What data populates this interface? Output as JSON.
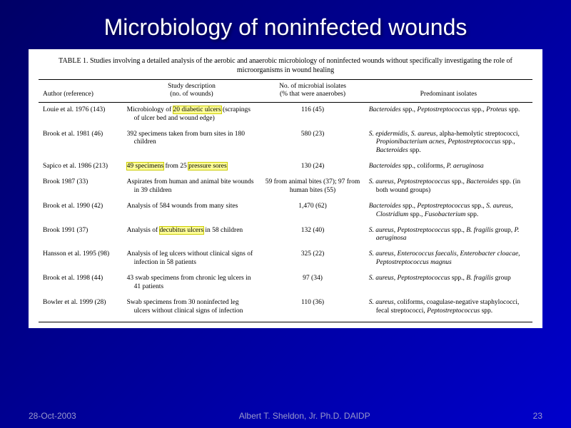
{
  "slide": {
    "title": "Microbiology of noninfected wounds",
    "background_gradient": [
      "#000066",
      "#000099",
      "#0000cc"
    ],
    "title_color": "#ffffff",
    "title_fontsize": 32
  },
  "table": {
    "type": "table",
    "background_color": "#ffffff",
    "font_family": "Times New Roman",
    "caption": "TABLE 1. Studies involving a detailed analysis of the aerobic and anaerobic microbiology of noninfected wounds without specifically investigating the role of microorganisms in wound healing",
    "caption_fontsize": 10,
    "body_fontsize": 9.5,
    "rule_color": "#000000",
    "highlight_bg": "#ffff99",
    "highlight_border": "#cccc00",
    "columns": [
      {
        "key": "author",
        "label": "Author (reference)",
        "width_pct": 17,
        "align": "left"
      },
      {
        "key": "desc",
        "label": "Study description\n(no. of wounds)",
        "width_pct": 28,
        "align": "left"
      },
      {
        "key": "isolates",
        "label": "No. of microbial isolates\n(% that were anaerobes)",
        "width_pct": 21,
        "align": "center"
      },
      {
        "key": "predominant",
        "label": "Predominant isolates",
        "width_pct": 34,
        "align": "left"
      }
    ],
    "header": {
      "author": "Author (reference)",
      "desc_l1": "Study description",
      "desc_l2": "(no. of wounds)",
      "isolates_l1": "No. of microbial isolates",
      "isolates_l2": "(% that were anaerobes)",
      "predominant": "Predominant isolates"
    },
    "rows": [
      {
        "author": "Louie et al. 1976 (143)",
        "desc_pre": "Microbiology of ",
        "desc_hilite": "20 diabetic ulcers",
        "desc_post": " (scrapings of ulcer bed and wound edge)",
        "isolates": "116 (45)",
        "predominant_html": "<span class='italic'>Bacteroides</span> spp., <span class='italic'>Peptostreptococcus</span> spp., <span class='italic'>Proteus</span> spp."
      },
      {
        "author": "Brook et al. 1981 (46)",
        "desc_plain": "392 specimens taken from burn sites in 180 children",
        "isolates": "580 (23)",
        "predominant_html": "<span class='italic'>S. epidermidis</span>, <span class='italic'>S. aureus</span>, alpha-hemolytic streptococci, <span class='italic'>Propionibacterium acnes</span>, <span class='italic'>Peptostreptococcus</span> spp., <span class='italic'>Bacteroides</span> spp."
      },
      {
        "author": "Sapico et al. 1986 (213)",
        "desc_pre": "",
        "desc_hilite": "49 specimens",
        "desc_mid": " from 25 ",
        "desc_hilite2": "pressure sores",
        "desc_post": "",
        "isolates": "130 (24)",
        "predominant_html": "<span class='italic'>Bacteroides</span> spp., coliforms, <span class='italic'>P. aeruginosa</span>"
      },
      {
        "author": "Brook 1987 (33)",
        "desc_plain": "Aspirates from human and animal bite wounds in 39 children",
        "isolates": "59 from animal bites (37); 97 from human bites (55)",
        "predominant_html": "<span class='italic'>S. aureus</span>, <span class='italic'>Peptostreptococcus</span> spp., <span class='italic'>Bacteroides</span> spp. (in both wound groups)"
      },
      {
        "author": "Brook et al. 1990 (42)",
        "desc_plain": "Analysis of 584 wounds from many sites",
        "isolates": "1,470 (62)",
        "predominant_html": "<span class='italic'>Bacteroides</span> spp., <span class='italic'>Peptostreptococcus</span> spp., <span class='italic'>S. aureus</span>, <span class='italic'>Clostridium</span> spp., <span class='italic'>Fusobacterium</span> spp."
      },
      {
        "author": "Brook 1991 (37)",
        "desc_pre": "Analysis of ",
        "desc_hilite": "decubitus ulcers",
        "desc_post": " in 58 children",
        "isolates": "132 (40)",
        "predominant_html": "<span class='italic'>S. aureus</span>, <span class='italic'>Peptostreptococcus</span> spp., <span class='italic'>B. fragilis</span> group, <span class='italic'>P. aeruginosa</span>"
      },
      {
        "author": "Hansson et al. 1995 (98)",
        "desc_plain": "Analysis of leg ulcers without clinical signs of infection in 58 patients",
        "isolates": "325 (22)",
        "predominant_html": "<span class='italic'>S. aureus</span>, <span class='italic'>Enterococcus faecalis</span>, <span class='italic'>Enterobacter cloacae</span>, <span class='italic'>Peptostreptococcus magnus</span>"
      },
      {
        "author": "Brook et al. 1998 (44)",
        "desc_plain": "43 swab specimens from chronic leg ulcers in 41 patients",
        "isolates": "97 (34)",
        "predominant_html": "<span class='italic'>S. aureus</span>, <span class='italic'>Peptostreptococcus</span> spp., <span class='italic'>B. fragilis</span> group"
      },
      {
        "author": "Bowler et al. 1999 (28)",
        "desc_plain": "Swab specimens from 30 noninfected leg ulcers without clinical signs of infection",
        "isolates": "110 (36)",
        "predominant_html": "<span class='italic'>S. aureus</span>, coliforms, coagulase-negative staphylococci, fecal streptococci, <span class='italic'>Peptostreptococcus</span> spp."
      }
    ]
  },
  "footer": {
    "date": "28-Oct-2003",
    "author": "Albert T. Sheldon, Jr. Ph.D. DAIDP",
    "page": "23",
    "color": "#9999cc",
    "fontsize": 12
  }
}
